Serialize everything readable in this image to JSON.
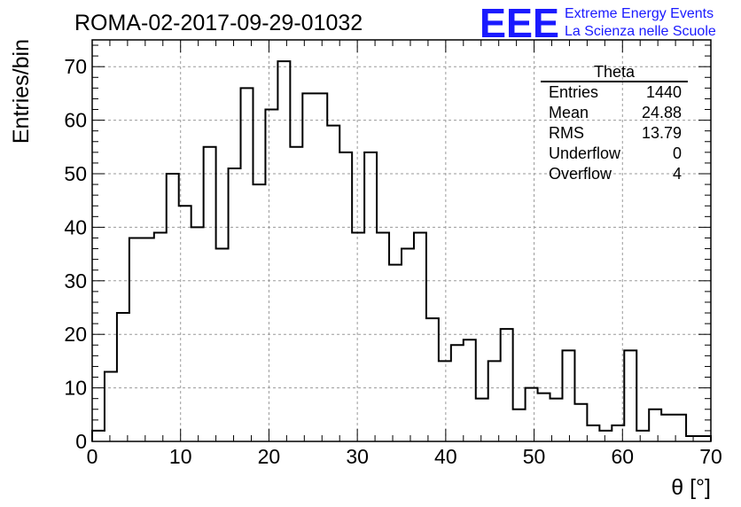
{
  "header": {
    "title": "ROMA-02-2017-09-29-01032",
    "logo_text": "EEE",
    "logo_line1": "Extreme Energy Events",
    "logo_line2": "La Scienza nelle Scuole",
    "logo_color": "#1a1aff"
  },
  "stats": {
    "name": "Theta",
    "rows": [
      {
        "label": "Entries",
        "value": "1440"
      },
      {
        "label": "Mean",
        "value": "24.88"
      },
      {
        "label": "RMS",
        "value": "13.79"
      },
      {
        "label": "Underflow",
        "value": "0"
      },
      {
        "label": "Overflow",
        "value": "4"
      }
    ]
  },
  "chart_data": {
    "type": "histogram",
    "title": "ROMA-02-2017-09-29-01032",
    "xlabel": "θ [°]",
    "ylabel": "Entries/bin",
    "xlim": [
      0,
      70
    ],
    "ylim": [
      0,
      75
    ],
    "bin_width": 1.4,
    "xticks": [
      0,
      10,
      20,
      30,
      40,
      50,
      60,
      70
    ],
    "yticks": [
      0,
      10,
      20,
      30,
      40,
      50,
      60,
      70
    ],
    "grid": true,
    "line_color": "#000000",
    "bin_edges_start": 0,
    "values": [
      2,
      13,
      24,
      38,
      38,
      39,
      50,
      44,
      40,
      55,
      36,
      51,
      66,
      48,
      62,
      71,
      55,
      65,
      65,
      59,
      54,
      39,
      54,
      39,
      33,
      36,
      39,
      23,
      15,
      18,
      19,
      8,
      15,
      21,
      6,
      10,
      9,
      8,
      17,
      7,
      3,
      2,
      3,
      17,
      2,
      6,
      5,
      5,
      1,
      1
    ]
  }
}
